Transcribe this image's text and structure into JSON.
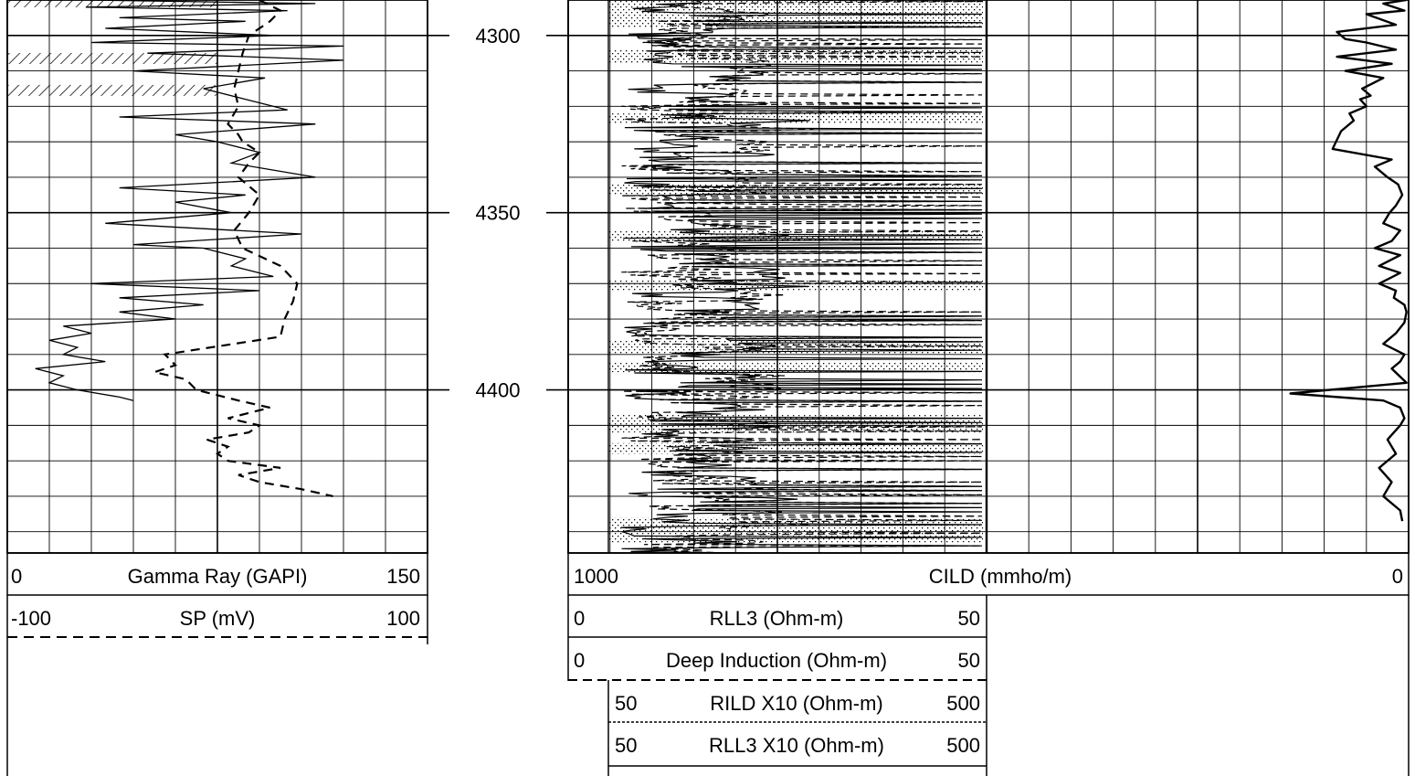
{
  "chart_data": {
    "type": "line",
    "depth_axis": {
      "ticks": [
        4300,
        4350,
        4400
      ],
      "ylim": [
        4290,
        4446
      ],
      "grid_step": 10
    },
    "tracks": [
      {
        "id": "track1",
        "scale_type": "linear",
        "curves": [
          {
            "name": "Gamma Ray (GAPI)",
            "min": "0",
            "max": "150",
            "style": "solid",
            "xlim": [
              0,
              150
            ],
            "x": [
              30,
              110,
              28,
              100,
              40,
              85,
              35,
              95,
              30,
              120,
              50,
              120,
              45,
              92,
              70,
              85,
              100,
              40,
              110,
              60,
              75,
              90,
              80,
              110,
              40,
              85,
              60,
              80,
              35,
              105,
              45,
              70,
              85,
              80,
              95,
              30,
              90,
              40,
              70,
              40,
              60,
              20,
              30,
              15,
              25,
              20,
              35,
              10,
              20,
              15,
              25,
              40,
              45
            ],
            "y": [
              4290,
              4291,
              4292,
              4293,
              4295,
              4296,
              4298,
              4300,
              4302,
              4303,
              4305,
              4307,
              4310,
              4312,
              4315,
              4318,
              4321,
              4323,
              4325,
              4328,
              4330,
              4333,
              4336,
              4340,
              4343,
              4345,
              4347,
              4350,
              4353,
              4356,
              4359,
              4360,
              4363,
              4365,
              4368,
              4370,
              4372,
              4374,
              4376,
              4378,
              4380,
              4382,
              4384,
              4386,
              4388,
              4390,
              4392,
              4394,
              4396,
              4398,
              4400,
              4402,
              4403
            ]
          },
          {
            "name": "SP (mV)",
            "min": "-100",
            "max": "100",
            "style": "dashed",
            "xlim": [
              -100,
              100
            ],
            "x": [
              20,
              30,
              25,
              15,
              12,
              10,
              8,
              10,
              5,
              10,
              12,
              20,
              15,
              10,
              20,
              15,
              8,
              12,
              30,
              38,
              36,
              32,
              30,
              -25,
              -20,
              -30,
              -15,
              -10,
              10,
              25,
              5,
              20,
              15,
              -5,
              5,
              0,
              5,
              30,
              10,
              20,
              40,
              55
            ],
            "y": [
              4290,
              4293,
              4296,
              4300,
              4305,
              4310,
              4315,
              4320,
              4325,
              4328,
              4330,
              4333,
              4336,
              4340,
              4345,
              4350,
              4355,
              4360,
              4365,
              4370,
              4375,
              4380,
              4385,
              4390,
              4393,
              4395,
              4397,
              4400,
              4403,
              4405,
              4408,
              4410,
              4412,
              4414,
              4416,
              4418,
              4420,
              4422,
              4424,
              4426,
              4428,
              4430
            ]
          }
        ],
        "shading": {
          "pattern": "hatched",
          "depths": [
            4290.5,
            4306.5,
            4315.5
          ]
        }
      },
      {
        "id": "track2",
        "scale_type": "linear",
        "curves": [
          {
            "name": "RLL3 (Ohm-m)",
            "min": "0",
            "max": "50",
            "style": "solid",
            "line": "top"
          },
          {
            "name": "Deep Induction (Ohm-m)",
            "min": "0",
            "max": "50",
            "style": "dashed",
            "line": "bottom"
          },
          {
            "name": "RILD X10 (Ohm-m)",
            "min": "50",
            "max": "500",
            "style": "solid",
            "line": "top"
          },
          {
            "name": "RLL3 X10 (Ohm-m)",
            "min": "50",
            "max": "500",
            "style": "solid",
            "line": "dotted"
          }
        ],
        "shading": {
          "pattern": "dotted",
          "depths": [
            4290,
            4298,
            4304,
            4308,
            4322,
            4325,
            4342,
            4345,
            4355,
            4358,
            4369,
            4372,
            4386,
            4390,
            4392,
            4395,
            4407,
            4412,
            4415,
            4418,
            4436,
            4443
          ]
        }
      },
      {
        "id": "track3",
        "scale_type": "linear",
        "curves": [
          {
            "name": "CILD (mmho/m)",
            "min": "1000",
            "max": "0",
            "style": "solid-bold",
            "xlim": [
              1000,
              0
            ],
            "x": [
              5,
              60,
              10,
              100,
              30,
              170,
              150,
              100,
              30,
              170,
              40,
              150,
              60,
              110,
              90,
              115,
              100,
              140,
              130,
              160,
              180,
              40,
              80,
              50,
              25,
              15,
              30,
              45,
              60,
              20,
              40,
              80,
              20,
              70,
              20,
              70,
              30,
              35,
              10,
              5,
              10,
              30,
              60,
              10,
              20,
              40,
              5,
              280,
              60,
              20,
              10,
              20,
              50,
              30,
              70,
              40,
              60,
              20,
              15
            ],
            "y": [
              4290,
              4291,
              4293,
              4294,
              4297,
              4299,
              4301,
              4302,
              4304,
              4306,
              4308,
              4310,
              4312,
              4315,
              4317,
              4318,
              4320,
              4322,
              4324,
              4327,
              4332,
              4335,
              4337,
              4340,
              4342,
              4345,
              4348,
              4350,
              4353,
              4355,
              4358,
              4360,
              4362,
              4365,
              4367,
              4370,
              4372,
              4374,
              4376,
              4378,
              4381,
              4384,
              4387,
              4390,
              4392,
              4394,
              4398,
              4401,
              4403,
              4405,
              4408,
              4410,
              4414,
              4418,
              4422,
              4426,
              4430,
              4434,
              4437
            ]
          }
        ]
      }
    ]
  }
}
